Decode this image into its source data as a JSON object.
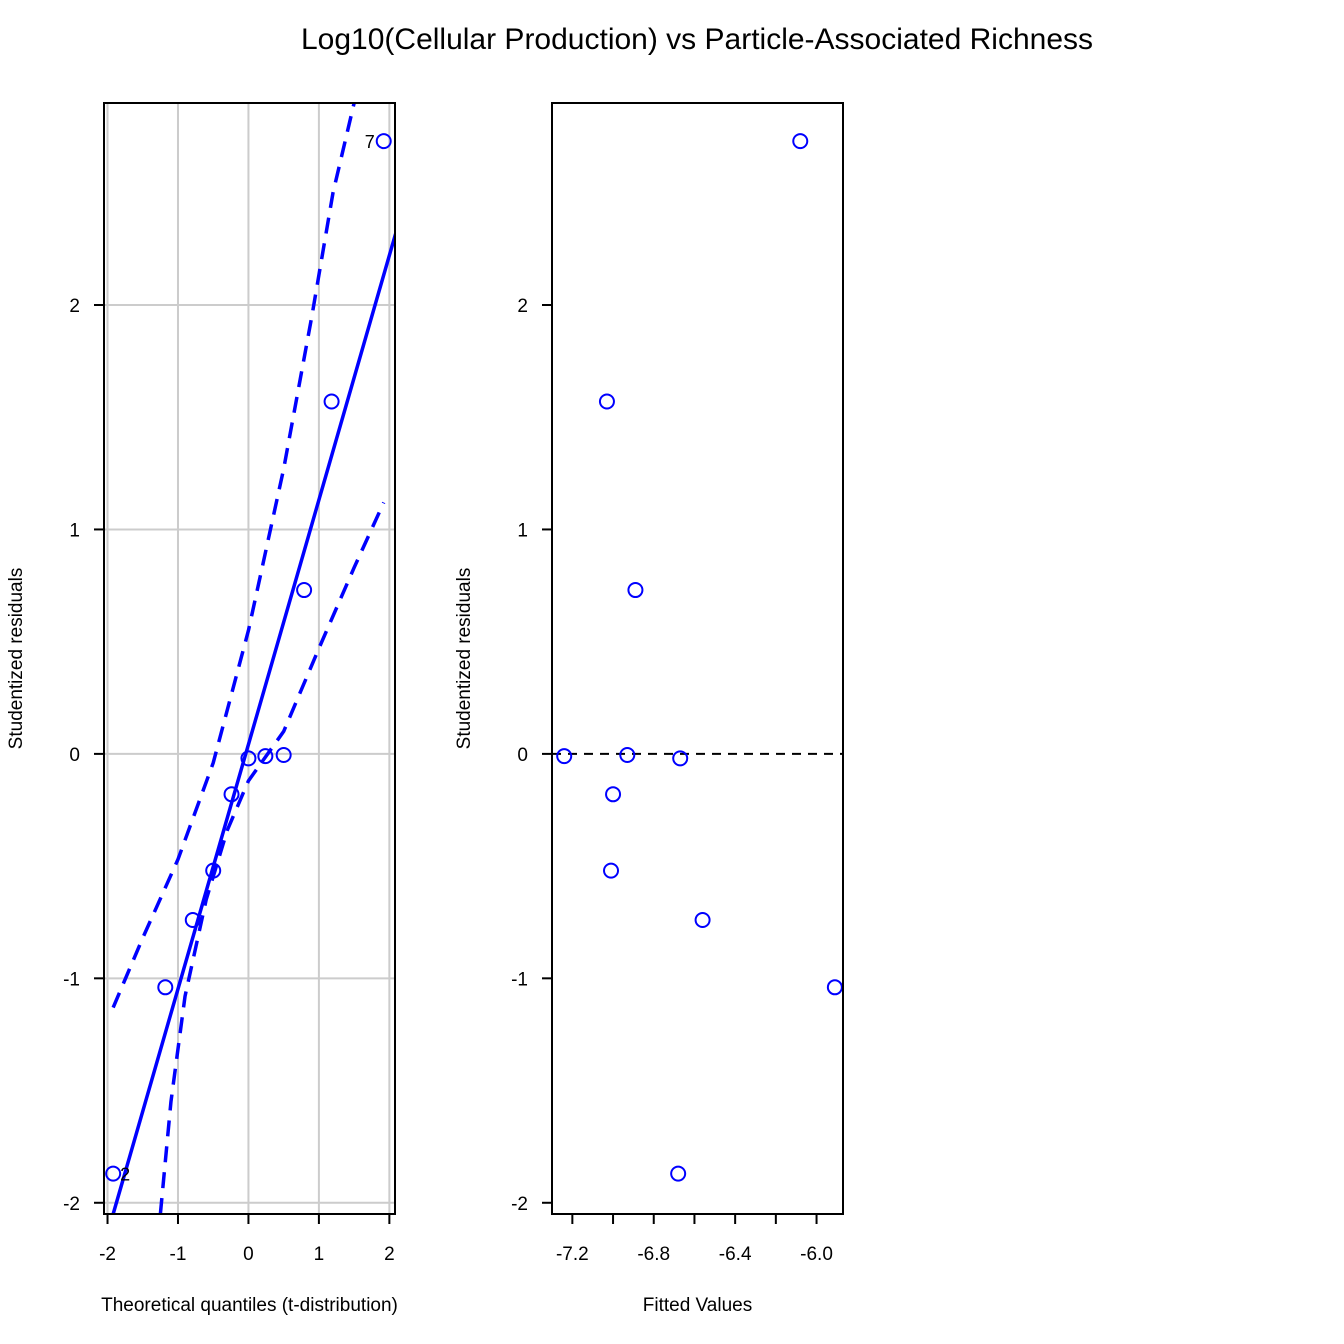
{
  "title": "Log10(Cellular Production) vs Particle-Associated Richness",
  "colors": {
    "series": "#0000ff",
    "grid": "#cccccc",
    "axis": "#000000"
  },
  "chart_data": [
    {
      "type": "scatter",
      "subtype": "qq-plot",
      "xlabel": "Theoretical quantiles (t-distribution)",
      "ylabel": "Studentized residuals",
      "xlim": [
        -2.05,
        2.08
      ],
      "ylim": [
        -2.05,
        2.9
      ],
      "xticks": [
        -2,
        -1,
        0,
        1,
        2
      ],
      "xtick_labels": [
        "-2",
        "-1",
        "0",
        "1",
        "2"
      ],
      "yticks": [
        -2,
        -1,
        0,
        1,
        2
      ],
      "ytick_labels": [
        "-2",
        "-1",
        "0",
        "1",
        "2"
      ],
      "grid": true,
      "points": [
        {
          "x": -1.92,
          "y": -1.87,
          "label": "2"
        },
        {
          "x": -1.18,
          "y": -1.04
        },
        {
          "x": -0.79,
          "y": -0.74
        },
        {
          "x": -0.5,
          "y": -0.52
        },
        {
          "x": -0.24,
          "y": -0.18
        },
        {
          "x": 0.0,
          "y": -0.02
        },
        {
          "x": 0.24,
          "y": -0.01
        },
        {
          "x": 0.5,
          "y": -0.005
        },
        {
          "x": 0.79,
          "y": 0.73
        },
        {
          "x": 1.18,
          "y": 1.57
        },
        {
          "x": 1.92,
          "y": 2.73,
          "label": "7"
        }
      ],
      "reference_line": {
        "x": [
          -1.92,
          2.1
        ],
        "y": [
          -2.05,
          2.33
        ]
      },
      "confidence_upper": {
        "x": [
          -1.92,
          -1.5,
          -1.0,
          -0.5,
          0.0,
          0.5,
          0.9,
          1.2,
          1.5,
          1.58
        ],
        "y": [
          -1.13,
          -0.82,
          -0.47,
          -0.04,
          0.55,
          1.27,
          1.95,
          2.5,
          2.9,
          2.95
        ]
      },
      "confidence_lower": {
        "x": [
          -1.25,
          -1.1,
          -0.9,
          -0.6,
          -0.3,
          0.0,
          0.5,
          1.0,
          1.5,
          1.92
        ],
        "y": [
          -2.05,
          -1.55,
          -1.08,
          -0.65,
          -0.34,
          -0.12,
          0.1,
          0.47,
          0.83,
          1.12
        ]
      }
    },
    {
      "type": "scatter",
      "xlabel": "Fitted Values",
      "ylabel": "Studentized residuals",
      "xlim": [
        -7.3,
        -5.87
      ],
      "ylim": [
        -2.05,
        2.9
      ],
      "xticks": [
        -7.2,
        -7.0,
        -6.8,
        -6.6,
        -6.4,
        -6.2,
        -6.0
      ],
      "xtick_labels": [
        "-7.2",
        "",
        "-6.8",
        "",
        "-6.4",
        "",
        "-6.0"
      ],
      "yticks": [
        -2,
        -1,
        0,
        1,
        2
      ],
      "ytick_labels": [
        "-2",
        "-1",
        "0",
        "1",
        "2"
      ],
      "grid": false,
      "reference_hline": 0,
      "points": [
        {
          "x": -7.24,
          "y": -0.01
        },
        {
          "x": -7.03,
          "y": 1.57
        },
        {
          "x": -7.0,
          "y": -0.18
        },
        {
          "x": -7.01,
          "y": -0.52
        },
        {
          "x": -6.93,
          "y": -0.005
        },
        {
          "x": -6.89,
          "y": 0.73
        },
        {
          "x": -6.67,
          "y": -0.02
        },
        {
          "x": -6.56,
          "y": -0.74
        },
        {
          "x": -6.68,
          "y": -1.87
        },
        {
          "x": -6.08,
          "y": 2.73
        },
        {
          "x": -5.91,
          "y": -1.04
        }
      ]
    }
  ]
}
